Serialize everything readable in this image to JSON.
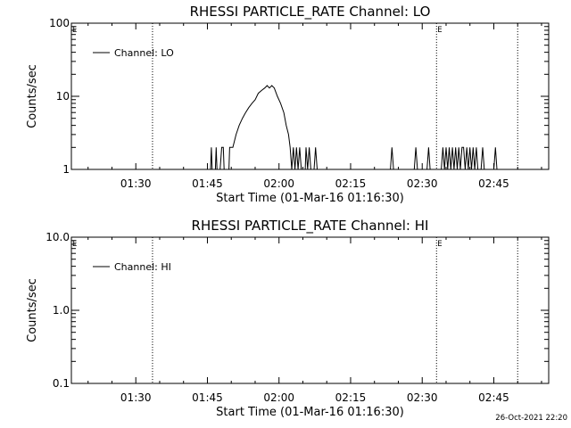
{
  "footer_timestamp": "26-Oct-2021 22:20",
  "chart_data": [
    {
      "type": "line",
      "title": "RHESSI PARTICLE_RATE Channel: LO",
      "xlabel": "Start Time (01-Mar-16 01:16:30)",
      "ylabel": "Counts/sec",
      "yscale": "log",
      "ylim": [
        1,
        100
      ],
      "yticks": [
        1,
        10,
        100
      ],
      "ytick_labels": [
        "1",
        "10",
        "100"
      ],
      "xlim": [
        "01:16:30",
        "02:56:30"
      ],
      "xticks": [
        "01:30",
        "01:45",
        "02:00",
        "02:15",
        "02:30",
        "02:45"
      ],
      "vlines": [
        "01:33:30",
        "02:33:00",
        "02:50:00"
      ],
      "eclipse_marks": [
        "01:16:30",
        "02:33:00"
      ],
      "eclipse_label": "E",
      "legend_position": "top-left",
      "series": [
        {
          "name": "Channel: LO",
          "x": [
            "01:45:40",
            "01:45:50",
            "01:46:00",
            "01:46:40",
            "01:46:50",
            "01:47:00",
            "01:47:40",
            "01:48:00",
            "01:48:20",
            "01:48:30",
            "01:49:30",
            "01:49:40",
            "01:50:00",
            "01:50:20",
            "01:51:00",
            "01:51:40",
            "01:52:20",
            "01:53:00",
            "01:53:40",
            "01:54:20",
            "01:55:00",
            "01:55:40",
            "01:56:20",
            "01:57:00",
            "01:57:30",
            "01:58:00",
            "01:58:30",
            "01:59:00",
            "01:59:40",
            "02:00:20",
            "02:01:00",
            "02:01:30",
            "02:02:00",
            "02:02:20",
            "02:02:40",
            "02:03:00",
            "02:03:20",
            "02:03:40",
            "02:04:00",
            "02:04:20",
            "02:04:40",
            "02:05:00",
            "02:05:30",
            "02:05:40",
            "02:06:00",
            "02:06:20",
            "02:06:40",
            "02:07:20",
            "02:07:40",
            "02:08:00",
            "02:23:20",
            "02:23:40",
            "02:24:00",
            "02:28:20",
            "02:28:40",
            "02:29:00",
            "02:31:00",
            "02:31:20",
            "02:31:40",
            "02:34:00",
            "02:34:20",
            "02:34:40",
            "02:35:00",
            "02:35:20",
            "02:35:40",
            "02:36:00",
            "02:36:20",
            "02:36:40",
            "02:37:00",
            "02:37:20",
            "02:37:40",
            "02:38:00",
            "02:38:20",
            "02:38:40",
            "02:39:00",
            "02:39:20",
            "02:39:40",
            "02:40:00",
            "02:40:20",
            "02:40:40",
            "02:41:00",
            "02:41:20",
            "02:41:40",
            "02:42:20",
            "02:42:40",
            "02:43:00",
            "02:45:00",
            "02:45:20",
            "02:45:40"
          ],
          "y": [
            1,
            2,
            1,
            1,
            2,
            1,
            1,
            2,
            2,
            1,
            1,
            2,
            2,
            2,
            3,
            4,
            5,
            6,
            7,
            8,
            9,
            11,
            12,
            13,
            14,
            13,
            14,
            13,
            10,
            8,
            6,
            4,
            3,
            2,
            1,
            2,
            1,
            2,
            1,
            2,
            1,
            1,
            1,
            2,
            1,
            2,
            1,
            1,
            2,
            1,
            1,
            2,
            1,
            1,
            2,
            1,
            1,
            2,
            1,
            1,
            2,
            1,
            2,
            1,
            2,
            1,
            2,
            1,
            2,
            1,
            2,
            1,
            2,
            2,
            1,
            2,
            1,
            2,
            1,
            2,
            1,
            2,
            1,
            1,
            2,
            1,
            1,
            2,
            1
          ]
        }
      ]
    },
    {
      "type": "line",
      "title": "RHESSI PARTICLE_RATE Channel: HI",
      "xlabel": "Start Time (01-Mar-16 01:16:30)",
      "ylabel": "Counts/sec",
      "yscale": "log",
      "ylim": [
        0.1,
        10
      ],
      "yticks": [
        0.1,
        1,
        10
      ],
      "ytick_labels": [
        "0.1",
        "1.0",
        "10.0"
      ],
      "xlim": [
        "01:16:30",
        "02:56:30"
      ],
      "xticks": [
        "01:30",
        "01:45",
        "02:00",
        "02:15",
        "02:30",
        "02:45"
      ],
      "vlines": [
        "01:33:30",
        "02:33:00",
        "02:50:00"
      ],
      "eclipse_marks": [
        "01:16:30",
        "02:33:00"
      ],
      "eclipse_label": "E",
      "legend_position": "top-left",
      "series": [
        {
          "name": "Channel: HI",
          "x": [],
          "y": []
        }
      ]
    }
  ]
}
